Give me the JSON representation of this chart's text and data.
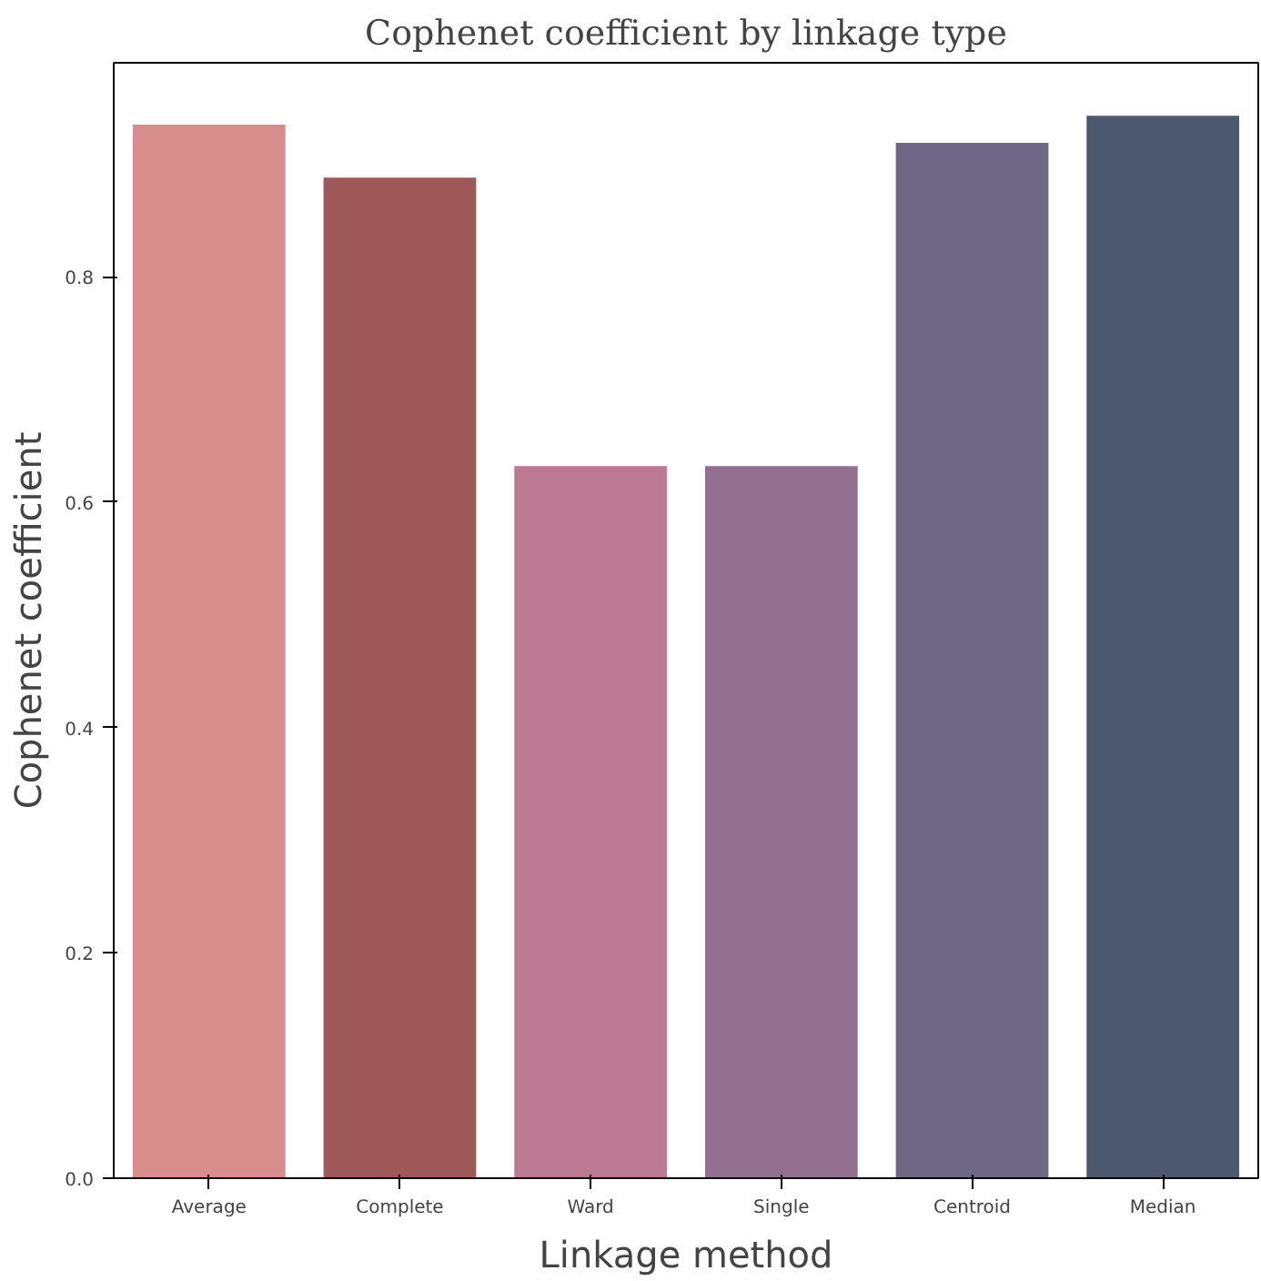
{
  "chart_data": {
    "type": "bar",
    "title": "Cophenet coefficient by linkage type",
    "xlabel": "Linkage method",
    "ylabel": "Cophenet coefficient",
    "categories": [
      "Average",
      "Complete",
      "Ward",
      "Single",
      "Centroid",
      "Median"
    ],
    "values": [
      0.935,
      0.888,
      0.632,
      0.632,
      0.919,
      0.943
    ],
    "colors": [
      "#d88c8c",
      "#9e5858",
      "#bb7a92",
      "#937090",
      "#6e6785",
      "#4b586f"
    ],
    "ylim": [
      0,
      0.99
    ],
    "yticks": [
      {
        "value": 0,
        "label": "0.0"
      },
      {
        "value": 0.2,
        "label": "0.2"
      },
      {
        "value": 0.4,
        "label": "0.4"
      },
      {
        "value": 0.6,
        "label": "0.6"
      },
      {
        "value": 0.8,
        "label": "0.8"
      }
    ],
    "grid": false
  }
}
